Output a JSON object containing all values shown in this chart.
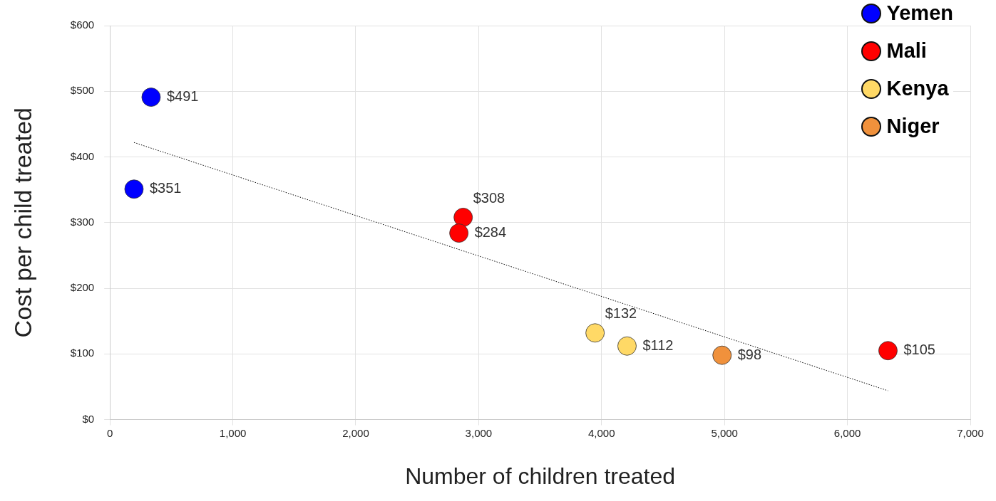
{
  "chart_data": {
    "type": "scatter",
    "xlabel": "Number of children treated",
    "ylabel": "Cost per child treated",
    "xlim": [
      0,
      7000
    ],
    "xticks": [
      {
        "value": 0,
        "label": "0"
      },
      {
        "value": 1000,
        "label": "1,000"
      },
      {
        "value": 2000,
        "label": "2,000"
      },
      {
        "value": 3000,
        "label": "3,000"
      },
      {
        "value": 4000,
        "label": "4,000"
      },
      {
        "value": 5000,
        "label": "5,000"
      },
      {
        "value": 6000,
        "label": "6,000"
      },
      {
        "value": 7000,
        "label": "7,000"
      }
    ],
    "ylim": [
      0,
      600
    ],
    "yticks": [
      {
        "value": 0,
        "label": "$0"
      },
      {
        "value": 100,
        "label": "$100"
      },
      {
        "value": 200,
        "label": "$200"
      },
      {
        "value": 300,
        "label": "$300"
      },
      {
        "value": 400,
        "label": "$400"
      },
      {
        "value": 500,
        "label": "$500"
      },
      {
        "value": 600,
        "label": "$600"
      }
    ],
    "grid": true,
    "legend": "top right",
    "marker": "circle",
    "series": [
      {
        "name": "Yemen",
        "color": "#0000ff",
        "x": [
          335,
          196
        ],
        "values": [
          491,
          351
        ],
        "value_labels": [
          "$491",
          "$351"
        ]
      },
      {
        "name": "Mali",
        "color": "#ff0000",
        "x": [
          2874,
          2839,
          6330
        ],
        "values": [
          308,
          284,
          105
        ],
        "value_labels": [
          "$308",
          "$284",
          "$105"
        ]
      },
      {
        "name": "Kenya",
        "color": "#ffd966",
        "x": [
          3947,
          4207
        ],
        "values": [
          132,
          112
        ],
        "value_labels": [
          "$132",
          "$112"
        ]
      },
      {
        "name": "Niger",
        "color": "#f0913c",
        "x": [
          4980
        ],
        "values": [
          98
        ],
        "value_labels": [
          "$98"
        ]
      },
      {
        "type": "line",
        "color": "#000000",
        "line_style": "dotted",
        "marker": "none",
        "x": [
          196,
          6330
        ],
        "values": [
          422,
          44
        ]
      }
    ]
  }
}
